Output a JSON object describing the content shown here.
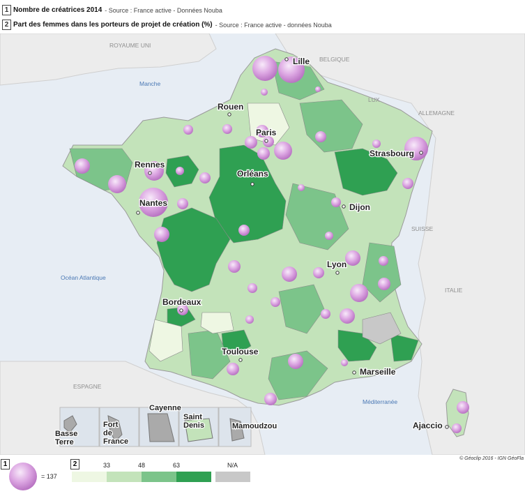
{
  "header": {
    "rows": [
      {
        "num": "1",
        "title": "Nombre de créatrices  2014",
        "source": "- Source : France active - Données Nouba"
      },
      {
        "num": "2",
        "title": "Part des femmes dans les porteurs de projet de création (%)",
        "source": "- Source : France active - données Nouba"
      }
    ]
  },
  "map": {
    "countries": [
      "ROYAUME UNI",
      "BELGIQUE",
      "LUX",
      "ALLEMAGNE",
      "SUISSE",
      "ITALIE",
      "ESPAGNE"
    ],
    "seas": [
      "Manche",
      "Océan Atlantique",
      "Méditerranée"
    ],
    "cities": [
      "Lille",
      "Rouen",
      "Paris",
      "Strasbourg",
      "Rennes",
      "Orléans",
      "Nantes",
      "Dijon",
      "Lyon",
      "Bordeaux",
      "Toulouse",
      "Marseille",
      "Ajaccio"
    ],
    "overseas": [
      "Basse Terre",
      "Fort de France",
      "Cayenne",
      "Saint Denis",
      "Mamoudzou"
    ],
    "credit": "© Géoclip 2016 - IGN GéoFla"
  },
  "legend": {
    "bubble": {
      "num": "1",
      "label": "= 137",
      "value": 137
    },
    "choropleth": {
      "num": "2",
      "ticks": [
        "33",
        "48",
        "63"
      ],
      "na_label": "N/A",
      "colors": [
        "#eef7e3",
        "#c3e3ba",
        "#7cc48a",
        "#2fa052",
        "#c8c8c8"
      ]
    }
  }
}
